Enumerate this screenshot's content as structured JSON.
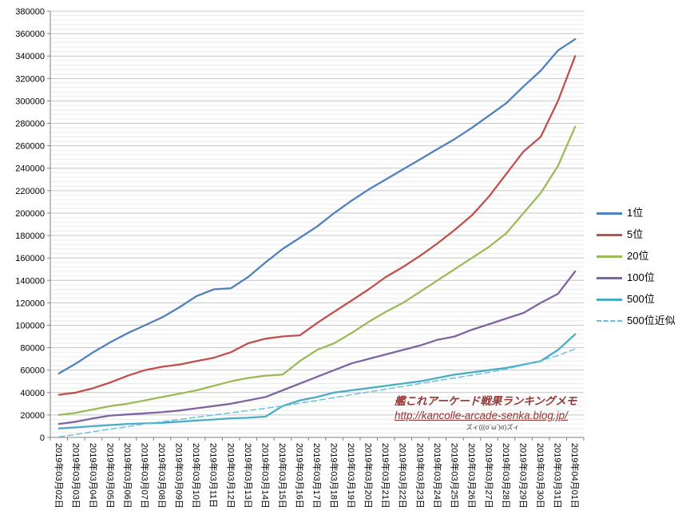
{
  "chart_data": {
    "type": "line",
    "title": "",
    "legend_position": "right",
    "x_labels": [
      "2019年03月02日",
      "2019年03月03日",
      "2019年03月04日",
      "2019年03月05日",
      "2019年03月06日",
      "2019年03月07日",
      "2019年03月08日",
      "2019年03月09日",
      "2019年03月10日",
      "2019年03月11日",
      "2019年03月12日",
      "2019年03月13日",
      "2019年03月14日",
      "2019年03月15日",
      "2019年03月16日",
      "2019年03月17日",
      "2019年03月18日",
      "2019年03月19日",
      "2019年03月20日",
      "2019年03月21日",
      "2019年03月22日",
      "2019年03月23日",
      "2019年03月24日",
      "2019年03月25日",
      "2019年03月26日",
      "2019年03月27日",
      "2019年03月28日",
      "2019年03月29日",
      "2019年03月30日",
      "2019年03月31日",
      "2019年04月01日"
    ],
    "y_axis": {
      "min": 0,
      "max": 380000,
      "major_step": 20000,
      "minor_step": 4000,
      "tick_labels": [
        "0",
        "20000",
        "40000",
        "60000",
        "80000",
        "100000",
        "120000",
        "140000",
        "160000",
        "180000",
        "200000",
        "220000",
        "240000",
        "260000",
        "280000",
        "300000",
        "320000",
        "340000",
        "360000",
        "380000"
      ]
    },
    "series": [
      {
        "name": "1位",
        "color": "#4F81BD",
        "dash": false,
        "values": [
          57000,
          66000,
          76000,
          85000,
          93000,
          100000,
          107000,
          116000,
          126000,
          132000,
          133000,
          143000,
          156000,
          168000,
          178000,
          188000,
          200000,
          211000,
          221000,
          230000,
          239000,
          248000,
          257000,
          266000,
          276000,
          287000,
          298000,
          313000,
          327000,
          345000,
          355000
        ]
      },
      {
        "name": "5位",
        "color": "#C0504D",
        "dash": false,
        "values": [
          38000,
          40000,
          44000,
          49000,
          55000,
          60000,
          63000,
          65000,
          68000,
          71000,
          76000,
          84000,
          88000,
          90000,
          91000,
          102000,
          112000,
          122000,
          132000,
          143000,
          152000,
          162000,
          173000,
          185000,
          198000,
          215000,
          235000,
          255000,
          268000,
          300000,
          340000
        ]
      },
      {
        "name": "20位",
        "color": "#9BBB59",
        "dash": false,
        "values": [
          20000,
          22000,
          25000,
          28000,
          30000,
          33000,
          36000,
          39000,
          42000,
          46000,
          50000,
          53000,
          55000,
          56000,
          68000,
          78000,
          84000,
          93000,
          103000,
          112000,
          120000,
          130000,
          140000,
          150000,
          160000,
          170000,
          182000,
          200000,
          218000,
          242000,
          277000
        ]
      },
      {
        "name": "100位",
        "color": "#8064A2",
        "dash": false,
        "values": [
          12000,
          14000,
          17000,
          19500,
          20500,
          21500,
          22500,
          24000,
          26000,
          28000,
          30000,
          33000,
          36000,
          42000,
          48000,
          54000,
          60000,
          66000,
          70000,
          74000,
          78000,
          82000,
          87000,
          90000,
          96000,
          101000,
          106000,
          111000,
          120000,
          128000,
          148000
        ]
      },
      {
        "name": "500位",
        "color": "#4BACC6",
        "dash": false,
        "values": [
          8000,
          9000,
          10000,
          11000,
          12000,
          12500,
          13000,
          14000,
          15000,
          16000,
          17000,
          17500,
          18500,
          28000,
          33000,
          36000,
          40000,
          42000,
          44000,
          46000,
          48000,
          50000,
          53000,
          56000,
          58000,
          60000,
          62000,
          65000,
          68000,
          78000,
          92000
        ]
      },
      {
        "name": "500位近似",
        "color": "#63C1DC",
        "dash": true,
        "values": [
          500,
          2800,
          5100,
          7400,
          9700,
          12000,
          14000,
          16000,
          18000,
          20000,
          22000,
          24000,
          26000,
          28000,
          30500,
          33000,
          35500,
          38000,
          40500,
          43000,
          45500,
          48000,
          50500,
          53000,
          55500,
          58000,
          61000,
          64500,
          68500,
          73000,
          79000
        ]
      }
    ]
  },
  "watermark": {
    "title": "艦これアーケード戦果ランキングメモ",
    "url": "http://kancolle-arcade-senka.blog.jp/",
    "kaomoji": "ズィ(((σ´ω`)σ)ズィ",
    "color": "#953735"
  }
}
